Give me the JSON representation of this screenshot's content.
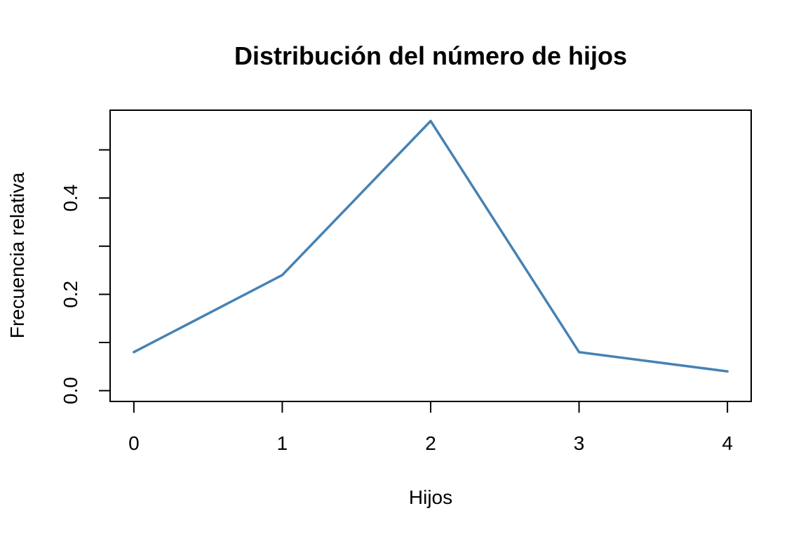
{
  "chart_data": {
    "type": "line",
    "title": "Distribución del número de hijos",
    "xlabel": "Hijos",
    "ylabel": "Frecuencia relativa",
    "x": [
      0,
      1,
      2,
      3,
      4
    ],
    "values": [
      0.08,
      0.24,
      0.56,
      0.08,
      0.04
    ],
    "xlim": [
      -0.16,
      4.16
    ],
    "ylim": [
      -0.0224,
      0.5824
    ],
    "x_ticks": [
      0,
      1,
      2,
      3,
      4
    ],
    "x_tick_labels": [
      "0",
      "1",
      "2",
      "3",
      "4"
    ],
    "y_ticks": [
      0.0,
      0.1,
      0.2,
      0.3,
      0.4,
      0.5
    ],
    "y_tick_labels": [
      "0.0",
      "",
      "0.2",
      "",
      "0.4",
      ""
    ],
    "grid": false,
    "line_color": "#4682B4"
  }
}
